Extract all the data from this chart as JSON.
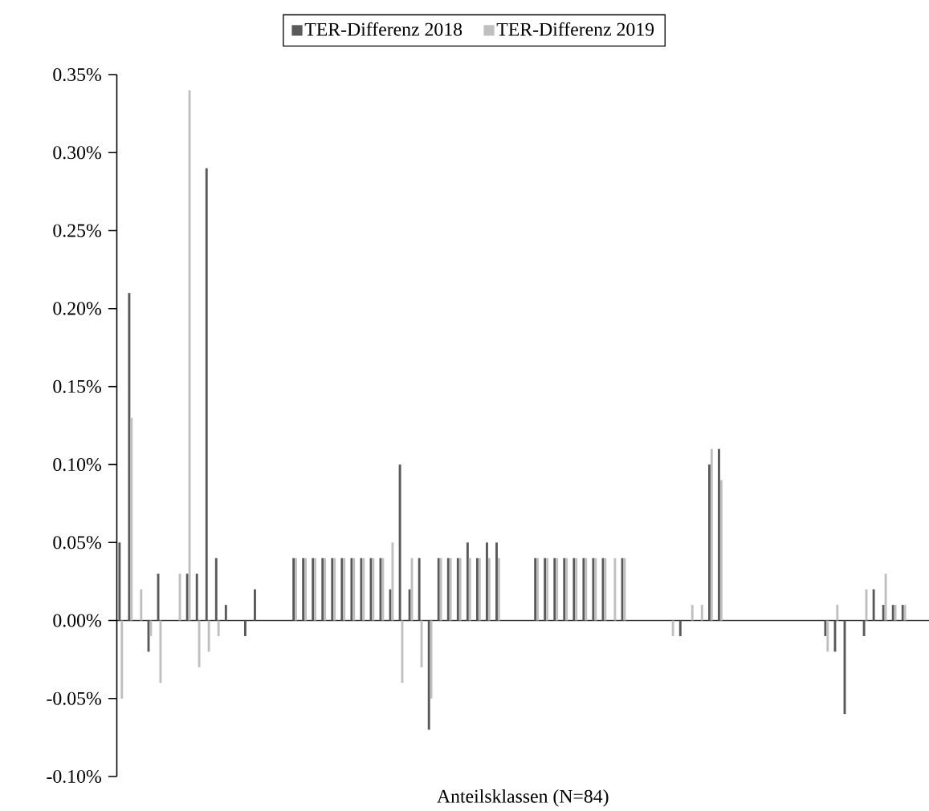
{
  "chart_data": {
    "type": "bar",
    "xlabel": "Anteilsklassen (N=84)",
    "categories": [
      null,
      null,
      null,
      null,
      null,
      null,
      null,
      null,
      null,
      null,
      null,
      null,
      null,
      null,
      null,
      null,
      null,
      null,
      null,
      null,
      null,
      null,
      null,
      null,
      null,
      null,
      null,
      null,
      null,
      null,
      null,
      null,
      null,
      null,
      null,
      null,
      null,
      null,
      null,
      null,
      null,
      null,
      null,
      null,
      null,
      null,
      null,
      null,
      null,
      null,
      null,
      null,
      null,
      null,
      null,
      null,
      null,
      null,
      null,
      null,
      null,
      null,
      null,
      null,
      null,
      null,
      null,
      null,
      null,
      null,
      null,
      null,
      null,
      null,
      null,
      null,
      null,
      null,
      null,
      null,
      null,
      null,
      null,
      null
    ],
    "series": [
      {
        "name": "TER-Differenz 2018",
        "color": "#595959",
        "values": [
          0.05,
          0.21,
          0,
          -0.02,
          0.03,
          0,
          0,
          0.03,
          0.03,
          0.29,
          0.04,
          0.01,
          0,
          -0.01,
          0.02,
          0,
          0,
          0,
          0.04,
          0.04,
          0.04,
          0.04,
          0.04,
          0.04,
          0.04,
          0.04,
          0.04,
          0.04,
          0.02,
          0.1,
          0.02,
          0.04,
          -0.07,
          0.04,
          0.04,
          0.04,
          0.05,
          0.04,
          0.05,
          0.05,
          0,
          0,
          0,
          0.04,
          0.04,
          0.04,
          0.04,
          0.04,
          0.04,
          0.04,
          0.04,
          0,
          0.04,
          0,
          0,
          0,
          0,
          0,
          -0.01,
          0,
          0,
          0.1,
          0.11,
          0,
          0,
          0,
          0,
          0,
          0,
          0,
          0,
          0,
          0,
          -0.01,
          -0.02,
          -0.06,
          0,
          -0.01,
          0.02,
          0.01,
          0.01,
          0.01,
          0,
          0
        ]
      },
      {
        "name": "TER-Differenz 2019",
        "color": "#bfbfbf",
        "values": [
          -0.05,
          0.13,
          0.02,
          -0.01,
          -0.04,
          0,
          0.03,
          0.34,
          -0.03,
          -0.02,
          -0.01,
          0,
          0,
          0,
          0,
          0,
          0,
          0,
          0.04,
          0.04,
          0.04,
          0.04,
          0.04,
          0.04,
          0.04,
          0.04,
          0.04,
          0.04,
          0.05,
          -0.04,
          0.04,
          -0.03,
          -0.05,
          0.04,
          0.04,
          0.04,
          0.04,
          0.04,
          0.04,
          0.04,
          0,
          0,
          0,
          0.04,
          0.04,
          0.04,
          0.04,
          0.04,
          0.04,
          0.04,
          0.04,
          0.04,
          0.04,
          0,
          0,
          0,
          0,
          -0.01,
          0,
          0.01,
          0.01,
          0.11,
          0.09,
          0,
          0,
          0,
          0,
          0,
          0,
          0,
          0,
          0,
          0,
          -0.02,
          0.01,
          0,
          0,
          0.02,
          0,
          0.03,
          0.01,
          0.01,
          0,
          0
        ]
      }
    ],
    "ylim": [
      -0.1,
      0.35
    ],
    "yticks": [
      {
        "value": -0.1,
        "label": "-0.10%"
      },
      {
        "value": -0.05,
        "label": "-0.05%"
      },
      {
        "value": 0,
        "label": "0.00%"
      },
      {
        "value": 0.05,
        "label": "0.05%"
      },
      {
        "value": 0.1,
        "label": "0.10%"
      },
      {
        "value": 0.15,
        "label": "0.15%"
      },
      {
        "value": 0.2,
        "label": "0.20%"
      },
      {
        "value": 0.25,
        "label": "0.25%"
      },
      {
        "value": 0.3,
        "label": "0.30%"
      },
      {
        "value": 0.35,
        "label": "0.35%"
      }
    ],
    "legend": "top"
  }
}
